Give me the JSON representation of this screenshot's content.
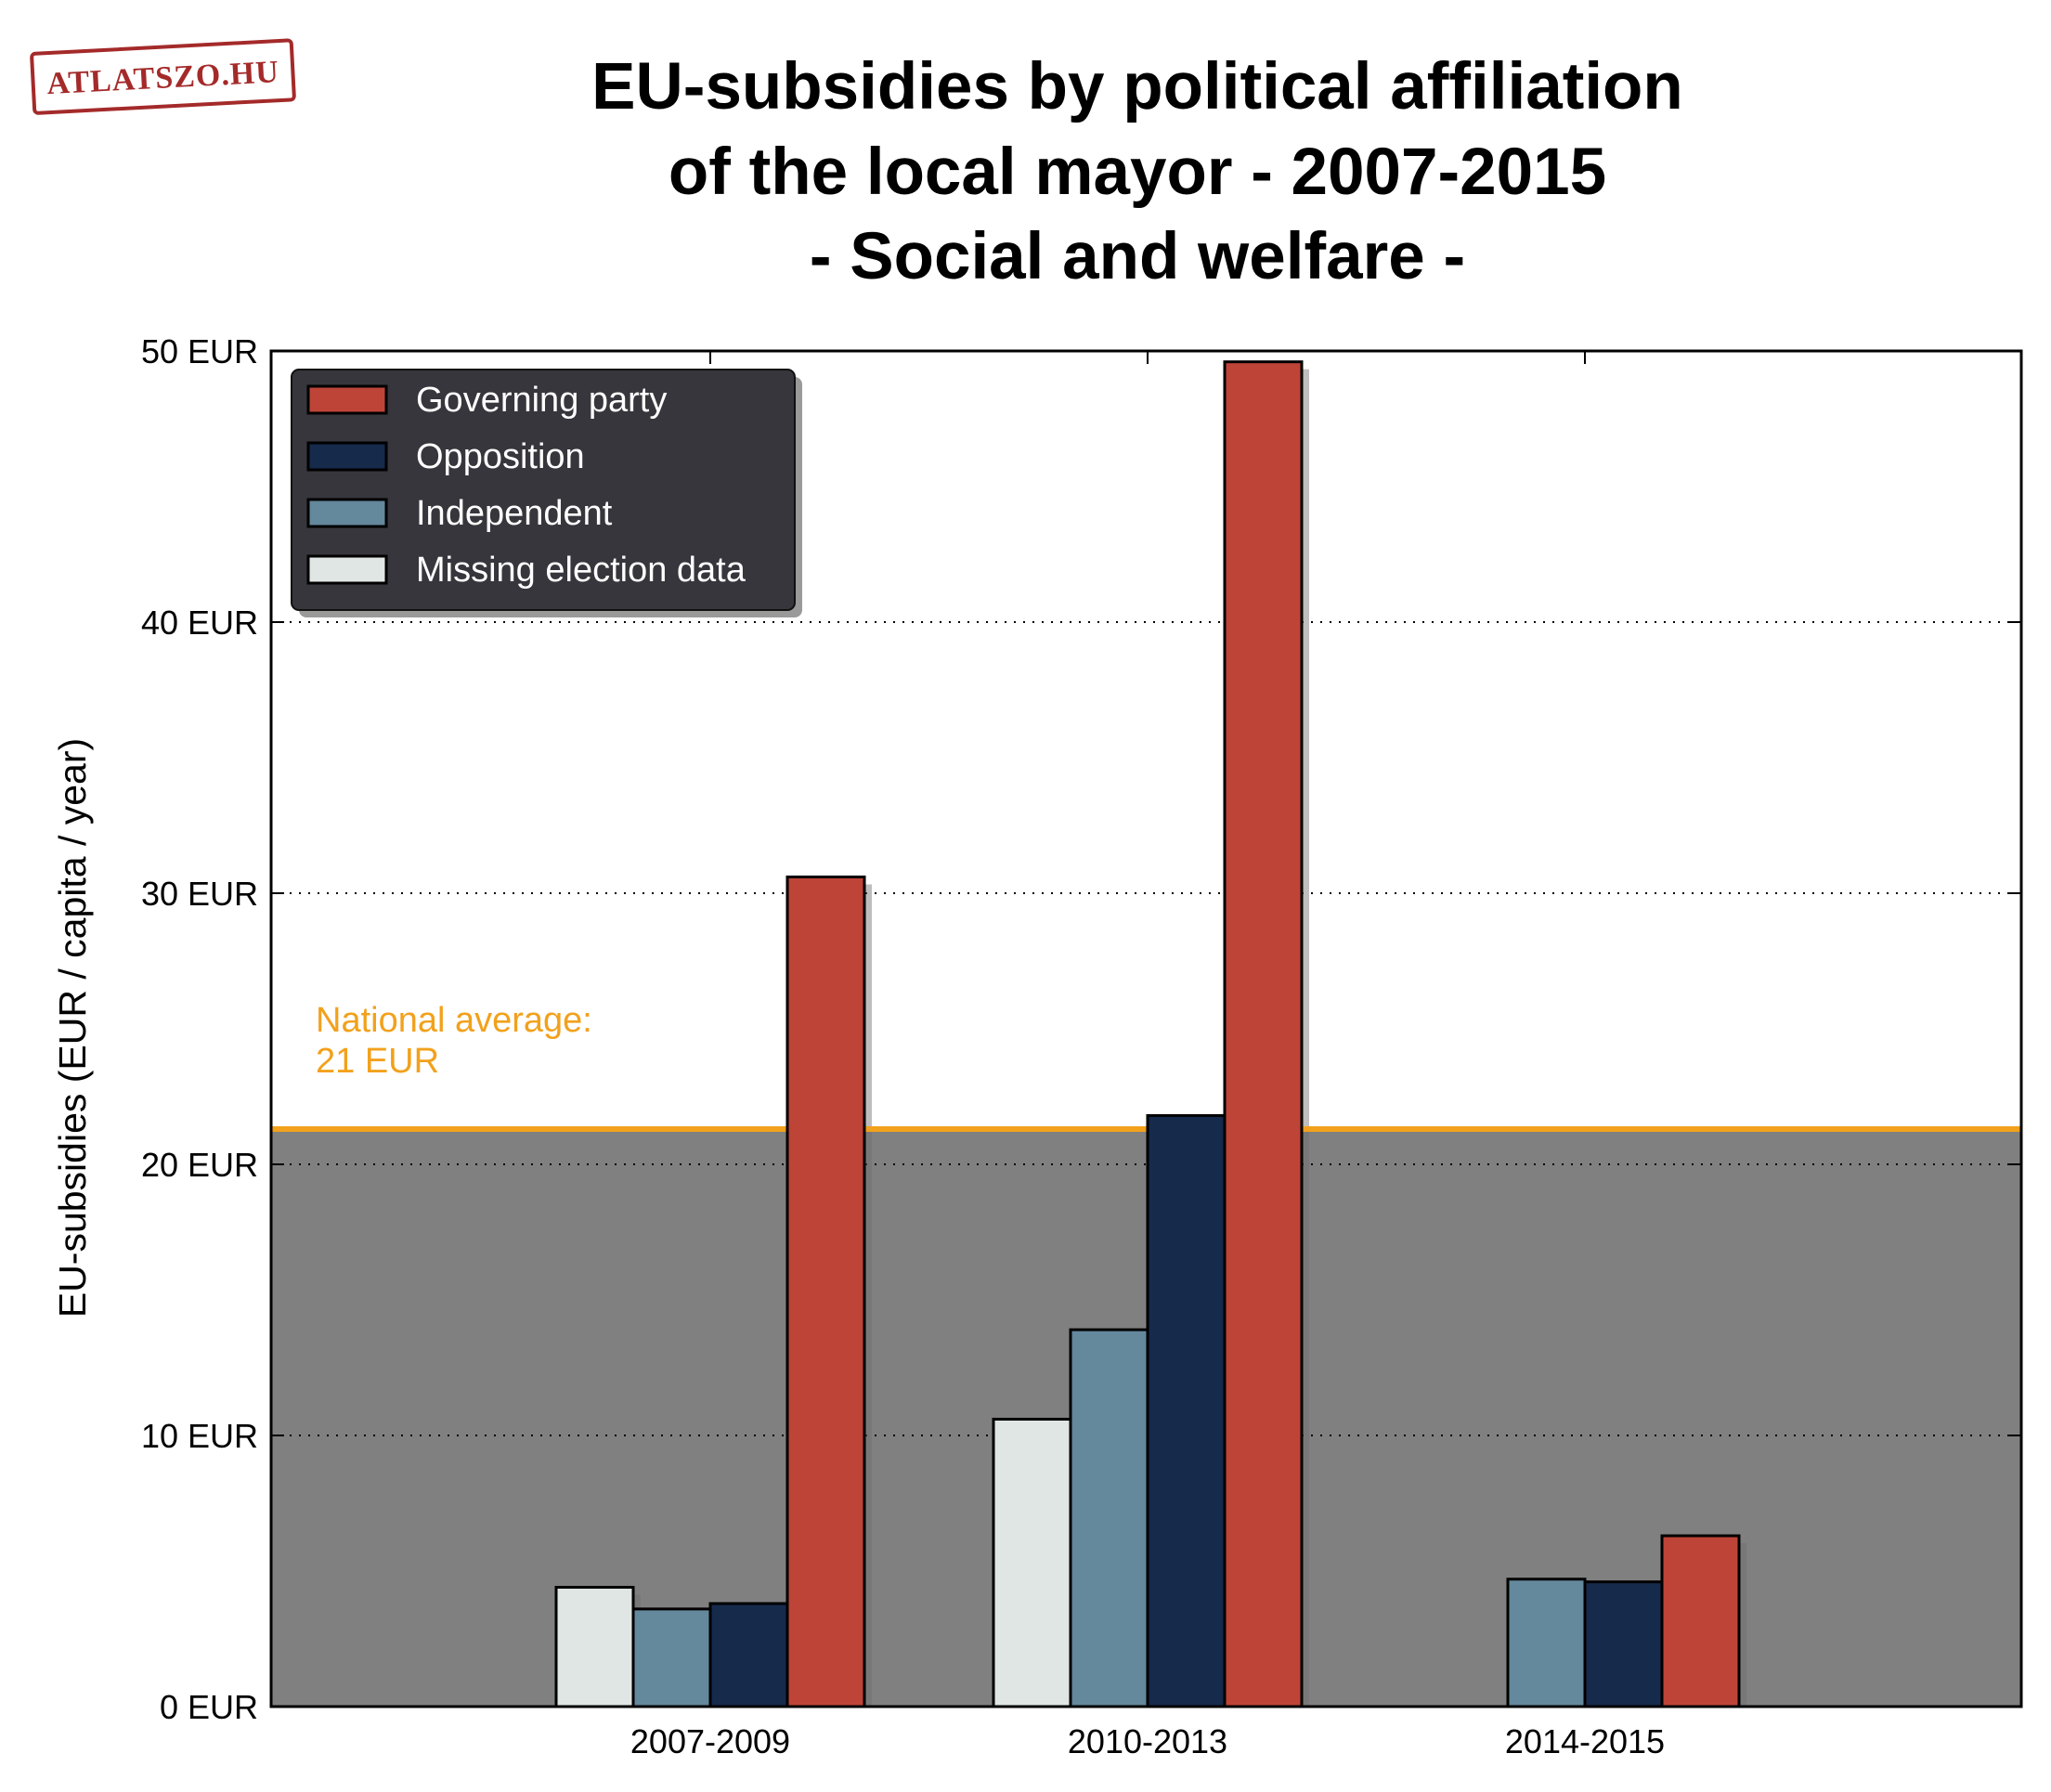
{
  "logo": {
    "text": "ATLATSZO.HU",
    "color": "#a42a2a"
  },
  "chart_data": {
    "type": "bar",
    "title_lines": [
      "EU-subsidies by political affiliation",
      "of the local mayor - 2007-2015",
      "- Social and welfare -"
    ],
    "ylabel": "EU-subsidies (EUR / capita / year)",
    "xlabel": "",
    "categories": [
      "2007-2009",
      "2010-2013",
      "2014-2015"
    ],
    "ylim": [
      0,
      50
    ],
    "yticks": [
      0,
      10,
      20,
      30,
      40,
      50
    ],
    "ytick_labels": [
      "0 EUR",
      "10 EUR",
      "20 EUR",
      "30 EUR",
      "40 EUR",
      "50 EUR"
    ],
    "grid": "horizontal dotted",
    "series": [
      {
        "name": "Missing election data",
        "color": "#e0e6e4",
        "values": [
          4.4,
          10.6,
          null
        ]
      },
      {
        "name": "Independent",
        "color": "#64889c",
        "values": [
          3.6,
          13.9,
          4.7
        ]
      },
      {
        "name": "Opposition",
        "color": "#162a4c",
        "values": [
          3.8,
          21.8,
          4.6
        ]
      },
      {
        "name": "Governing party",
        "color": "#be4438",
        "values": [
          30.6,
          49.6,
          6.3
        ]
      }
    ],
    "legend": {
      "placement": "top-left",
      "order": [
        "Governing party",
        "Opposition",
        "Independent",
        "Missing election data"
      ]
    },
    "reference_line": {
      "value": 21.3,
      "color": "#f2a11c",
      "shade_color": "#808080",
      "label_lines": [
        "National average:",
        "21 EUR"
      ]
    }
  }
}
